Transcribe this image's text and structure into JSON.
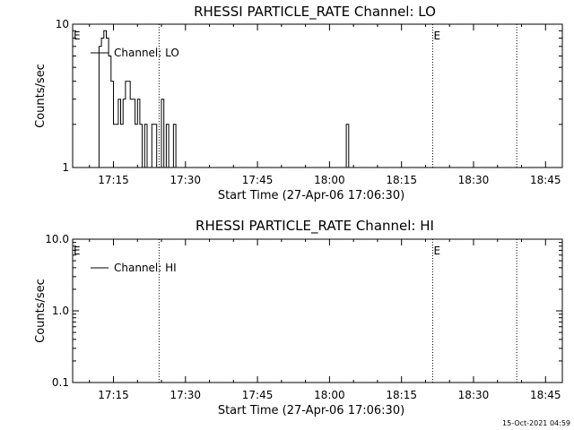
{
  "footer": {
    "timestamp": "15-Oct-2021 04:59"
  },
  "chart_data": [
    {
      "type": "line",
      "title": "RHESSI PARTICLE_RATE Channel: LO",
      "xlabel": "Start Time (27-Apr-06 17:06:30)",
      "ylabel": "Counts/sec",
      "yscale": "log",
      "ylim": [
        1,
        10
      ],
      "xlim": [
        "17:06:30",
        "18:48:30"
      ],
      "xticks": [
        "17:15",
        "17:30",
        "17:45",
        "18:00",
        "18:15",
        "18:30",
        "18:45"
      ],
      "yticks": [
        "1",
        "10"
      ],
      "legend": "upper-left",
      "series": [
        {
          "name": "Channel: LO",
          "points": [
            [
              "17:11:30",
              1
            ],
            [
              "17:12:00",
              7
            ],
            [
              "17:12:30",
              8
            ],
            [
              "17:13:00",
              9
            ],
            [
              "17:13:30",
              8
            ],
            [
              "17:14:00",
              6
            ],
            [
              "17:14:30",
              4
            ],
            [
              "17:15:00",
              2
            ],
            [
              "17:15:30",
              2
            ],
            [
              "17:16:00",
              3
            ],
            [
              "17:16:30",
              2
            ],
            [
              "17:17:00",
              3
            ],
            [
              "17:17:30",
              4
            ],
            [
              "17:18:00",
              4
            ],
            [
              "17:18:30",
              3
            ],
            [
              "17:19:00",
              3
            ],
            [
              "17:19:30",
              2
            ],
            [
              "17:20:00",
              3
            ],
            [
              "17:20:30",
              2
            ],
            [
              "17:21:00",
              1
            ],
            [
              "17:21:30",
              2
            ],
            [
              "17:22:00",
              1
            ],
            [
              "17:22:30",
              1
            ],
            [
              "17:23:00",
              2
            ],
            [
              "17:23:30",
              2
            ],
            [
              "17:24:00",
              1
            ],
            [
              "17:24:30",
              1
            ],
            [
              "17:25:00",
              3
            ],
            [
              "17:25:30",
              1
            ],
            [
              "17:26:00",
              2
            ],
            [
              "17:26:30",
              1
            ],
            [
              "17:27:00",
              1
            ],
            [
              "17:27:30",
              2
            ],
            [
              "17:28:00",
              1
            ],
            [
              "18:03:00",
              1
            ],
            [
              "18:03:30",
              2
            ],
            [
              "18:04:00",
              1
            ]
          ]
        }
      ],
      "markers": [
        {
          "time": "17:06:30",
          "label": "E",
          "dotted": false
        },
        {
          "time": "17:24:30",
          "label": "",
          "dotted": true
        },
        {
          "time": "18:21:30",
          "label": "E",
          "dotted": true
        },
        {
          "time": "18:39:00",
          "label": "",
          "dotted": true
        }
      ]
    },
    {
      "type": "line",
      "title": "RHESSI PARTICLE_RATE Channel: HI",
      "xlabel": "Start Time (27-Apr-06 17:06:30)",
      "ylabel": "Counts/sec",
      "yscale": "log",
      "ylim": [
        0.1,
        10
      ],
      "xlim": [
        "17:06:30",
        "18:48:30"
      ],
      "xticks": [
        "17:15",
        "17:30",
        "17:45",
        "18:00",
        "18:15",
        "18:30",
        "18:45"
      ],
      "yticks": [
        "0.1",
        "1.0",
        "10.0"
      ],
      "legend": "upper-left",
      "series": [
        {
          "name": "Channel: HI",
          "points": []
        }
      ],
      "markers": [
        {
          "time": "17:06:30",
          "label": "E",
          "dotted": false
        },
        {
          "time": "17:24:30",
          "label": "",
          "dotted": true
        },
        {
          "time": "18:21:30",
          "label": "E",
          "dotted": true
        },
        {
          "time": "18:39:00",
          "label": "",
          "dotted": true
        }
      ]
    }
  ]
}
